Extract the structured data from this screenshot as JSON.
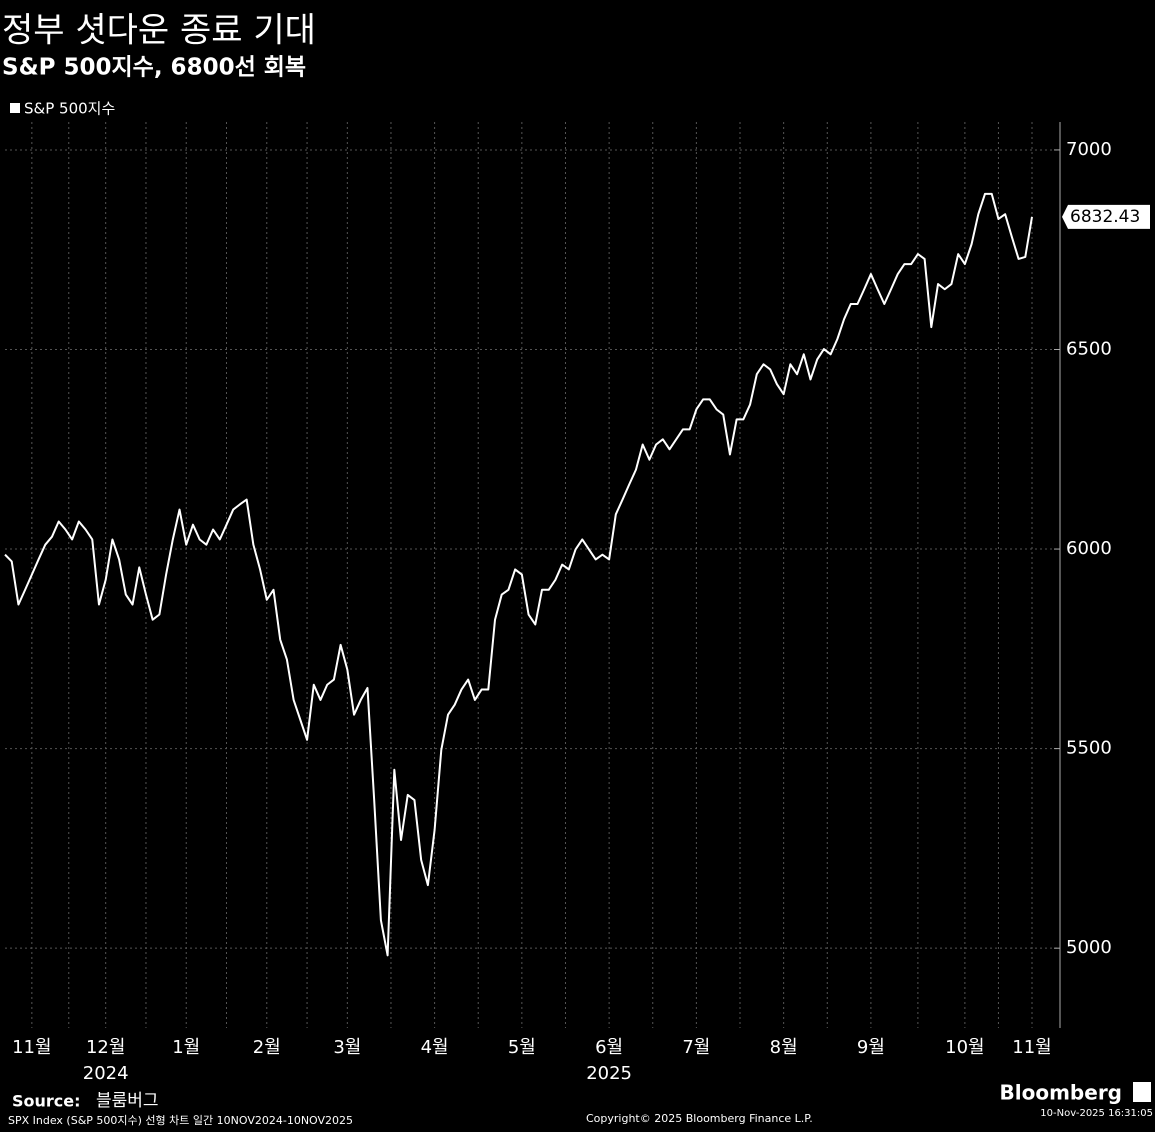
{
  "chart_data": {
    "type": "line",
    "title": "정부 셧다운 종료 기대",
    "subtitle": "S&P 500지수, 6800선 회복",
    "categories": [
      null,
      null,
      null,
      null,
      "11월",
      null,
      null,
      null,
      null,
      null,
      null,
      null,
      null,
      null,
      null,
      "12월",
      null,
      null,
      null,
      null,
      null,
      null,
      null,
      null,
      null,
      null,
      null,
      "1월",
      null,
      null,
      null,
      null,
      null,
      null,
      null,
      null,
      null,
      null,
      null,
      "2월",
      null,
      null,
      null,
      null,
      null,
      null,
      null,
      null,
      null,
      null,
      null,
      "3월",
      null,
      null,
      null,
      null,
      null,
      null,
      null,
      null,
      null,
      null,
      null,
      null,
      "4월",
      null,
      null,
      null,
      null,
      null,
      null,
      null,
      null,
      null,
      null,
      null,
      null,
      "5월",
      null,
      null,
      null,
      null,
      null,
      null,
      null,
      null,
      null,
      null,
      null,
      null,
      "6월",
      null,
      null,
      null,
      null,
      null,
      null,
      null,
      null,
      null,
      null,
      null,
      null,
      "7월",
      null,
      null,
      null,
      null,
      null,
      null,
      null,
      null,
      null,
      null,
      null,
      null,
      "8월",
      null,
      null,
      null,
      null,
      null,
      null,
      null,
      null,
      null,
      null,
      null,
      null,
      "9월",
      null,
      null,
      null,
      null,
      null,
      null,
      null,
      null,
      null,
      null,
      null,
      null,
      null,
      "10월",
      null,
      null,
      null,
      null,
      null,
      null,
      null,
      null,
      null,
      "11월"
    ],
    "series": [
      {
        "name": "S&P 500지수",
        "color": "#ffffff",
        "values": [
          5986,
          5969,
          5861,
          5898,
          5936,
          5974,
          6011,
          6031,
          6069,
          6049,
          6024,
          6069,
          6049,
          6024,
          5861,
          5923,
          6024,
          5974,
          5886,
          5861,
          5954,
          5886,
          5823,
          5836,
          5936,
          6024,
          6099,
          6011,
          6061,
          6024,
          6011,
          6049,
          6024,
          6061,
          6099,
          6112,
          6124,
          6011,
          5949,
          5873,
          5898,
          5773,
          5723,
          5622,
          5572,
          5522,
          5660,
          5622,
          5660,
          5673,
          5760,
          5698,
          5585,
          5622,
          5652,
          5371,
          5070,
          4982,
          5447,
          5271,
          5384,
          5371,
          5221,
          5158,
          5296,
          5497,
          5585,
          5610,
          5648,
          5673,
          5622,
          5648,
          5648,
          5823,
          5886,
          5898,
          5949,
          5936,
          5836,
          5811,
          5898,
          5898,
          5923,
          5961,
          5949,
          5999,
          6024,
          5999,
          5974,
          5986,
          5974,
          6087,
          6124,
          6162,
          6199,
          6262,
          6224,
          6262,
          6275,
          6250,
          6275,
          6300,
          6300,
          6350,
          6375,
          6375,
          6350,
          6337,
          6237,
          6325,
          6325,
          6362,
          6438,
          6463,
          6450,
          6413,
          6388,
          6463,
          6438,
          6488,
          6425,
          6475,
          6501,
          6488,
          6526,
          6576,
          6614,
          6614,
          6651,
          6689,
          6651,
          6614,
          6651,
          6689,
          6714,
          6714,
          6739,
          6727,
          6556,
          6664,
          6651,
          6664,
          6739,
          6714,
          6764,
          6839,
          6890,
          6890,
          6827,
          6839,
          6782,
          6727,
          6732,
          6832.43
        ]
      }
    ],
    "ylim": [
      4800,
      7070
    ],
    "yticks": [
      5000,
      5500,
      6000,
      6500,
      7000
    ],
    "grid": true,
    "years": [
      "2024",
      "2025"
    ],
    "source_label": "Source:",
    "source": "블룸버그",
    "footnote": "SPX Index (S&P 500지수) 선형 차트 일간 10NOV2024-10NOV2025",
    "copyright": "Copyright© 2025 Bloomberg Finance L.P.",
    "brand": "Bloomberg",
    "timestamp": "10-Nov-2025 16:31:05"
  }
}
